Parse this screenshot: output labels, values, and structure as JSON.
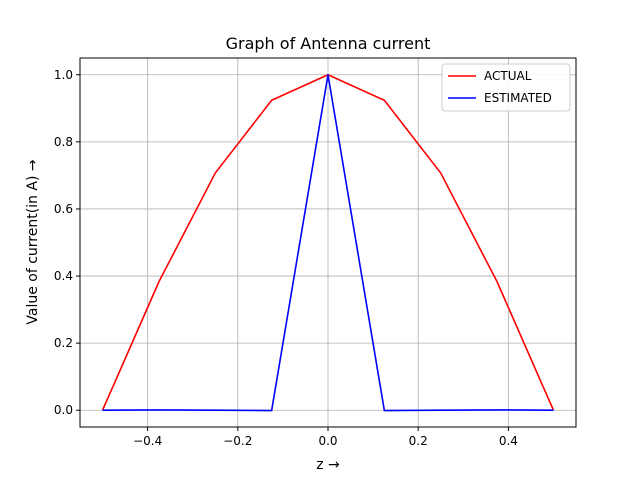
{
  "chart_data": {
    "type": "line",
    "title": "Graph of Antenna current",
    "xlabel": "z →",
    "ylabel": "Value of current(in A) →",
    "xlim": [
      -0.55,
      0.55
    ],
    "ylim": [
      -0.05,
      1.05
    ],
    "xticks": [
      -0.4,
      -0.2,
      0.0,
      0.2,
      0.4
    ],
    "xtick_labels": [
      "−0.4",
      "−0.2",
      "0.0",
      "0.2",
      "0.4"
    ],
    "yticks": [
      0.0,
      0.2,
      0.4,
      0.6,
      0.8,
      1.0
    ],
    "ytick_labels": [
      "0.0",
      "0.2",
      "0.4",
      "0.6",
      "0.8",
      "1.0"
    ],
    "grid": true,
    "legend_position": "top-right",
    "x": [
      -0.5,
      -0.375,
      -0.25,
      -0.125,
      0.0,
      0.125,
      0.25,
      0.375,
      0.5
    ],
    "series": [
      {
        "name": "ACTUAL",
        "color": "#ff0000",
        "values": [
          0.0,
          0.383,
          0.707,
          0.924,
          1.0,
          0.924,
          0.707,
          0.383,
          0.0
        ]
      },
      {
        "name": "ESTIMATED",
        "color": "#0000ff",
        "values": [
          0.0,
          0.001,
          0.0,
          -0.001,
          1.0,
          -0.001,
          0.0,
          0.001,
          0.0
        ]
      }
    ]
  }
}
